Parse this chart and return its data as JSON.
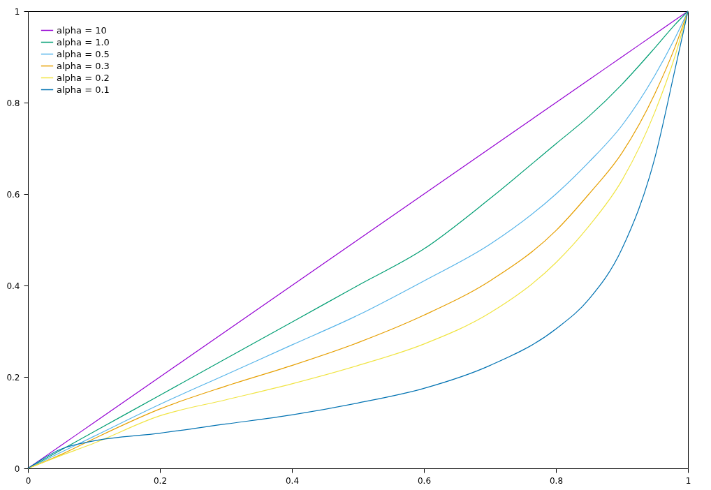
{
  "chart_data": {
    "type": "line",
    "x": [
      0,
      0.05,
      0.1,
      0.2,
      0.3,
      0.4,
      0.5,
      0.6,
      0.7,
      0.8,
      0.85,
      0.9,
      0.95,
      0.98,
      1
    ],
    "series": [
      {
        "name": "alpha = 10",
        "color": "#9400d3",
        "values": [
          0,
          0.05,
          0.1,
          0.2,
          0.3,
          0.4,
          0.5,
          0.6,
          0.7,
          0.8,
          0.85,
          0.9,
          0.95,
          0.98,
          1
        ]
      },
      {
        "name": "alpha = 1.0",
        "color": "#009e73",
        "values": [
          0,
          0.04,
          0.08,
          0.16,
          0.24,
          0.32,
          0.4,
          0.48,
          0.59,
          0.71,
          0.77,
          0.84,
          0.92,
          0.97,
          1
        ]
      },
      {
        "name": "alpha = 0.5",
        "color": "#56b4e9",
        "values": [
          0,
          0.035,
          0.07,
          0.14,
          0.205,
          0.27,
          0.335,
          0.41,
          0.49,
          0.6,
          0.67,
          0.75,
          0.86,
          0.94,
          1
        ]
      },
      {
        "name": "alpha = 0.3",
        "color": "#e69f00",
        "values": [
          0,
          0.03,
          0.065,
          0.13,
          0.18,
          0.225,
          0.275,
          0.335,
          0.41,
          0.52,
          0.6,
          0.69,
          0.82,
          0.92,
          1
        ]
      },
      {
        "name": "alpha = 0.2",
        "color": "#f0e442",
        "values": [
          0,
          0.028,
          0.055,
          0.115,
          0.15,
          0.185,
          0.225,
          0.272,
          0.34,
          0.45,
          0.53,
          0.63,
          0.78,
          0.9,
          1
        ]
      },
      {
        "name": "alpha = 0.1",
        "color": "#0072b2",
        "values": [
          0,
          0.042,
          0.06,
          0.077,
          0.097,
          0.117,
          0.143,
          0.175,
          0.225,
          0.305,
          0.37,
          0.48,
          0.68,
          0.87,
          1
        ]
      }
    ],
    "xlim": [
      0,
      1
    ],
    "xticks": [
      0,
      0.2,
      0.4,
      0.6,
      0.8,
      1
    ],
    "ylim": [
      0,
      1
    ],
    "yticks": [
      0,
      0.2,
      0.4,
      0.6,
      0.8,
      1
    ],
    "grid": false,
    "legend": "top left",
    "line_style": "solid"
  }
}
